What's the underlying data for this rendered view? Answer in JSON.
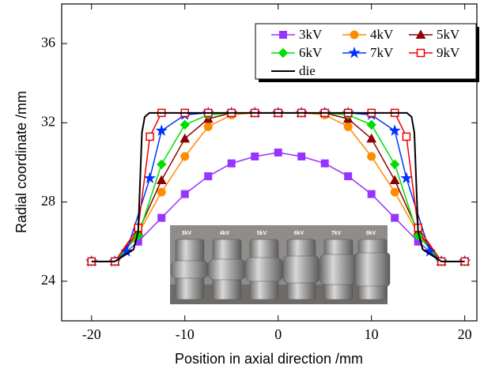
{
  "chart_data": {
    "type": "line",
    "x_label": "Position in axial direction /mm",
    "y_label": "Radial coordinate /mm",
    "xlim": [
      -23.2,
      21.3
    ],
    "ylim": [
      22,
      38
    ],
    "xticks": [
      -20,
      -10,
      0,
      10,
      20
    ],
    "yticks": [
      24,
      28,
      32,
      36
    ],
    "legend": "upper right",
    "inset_labels": [
      "3kV",
      "4kV",
      "5kV",
      "6kV",
      "7kV",
      "9kV"
    ],
    "series": [
      {
        "name": "3kV",
        "color": "#9933ff",
        "marker": "square",
        "x": [
          -20,
          -17.5,
          -15,
          -12.5,
          -10,
          -7.5,
          -5,
          -2.5,
          0,
          2.5,
          5,
          7.5,
          10,
          12.5,
          15,
          17.5,
          20
        ],
        "values": [
          25.0,
          25.0,
          26.0,
          27.2,
          28.4,
          29.3,
          29.95,
          30.3,
          30.5,
          30.3,
          29.95,
          29.3,
          28.4,
          27.2,
          26.0,
          25.0,
          25.0
        ]
      },
      {
        "name": "4kV",
        "color": "#ff8c00",
        "marker": "circle",
        "x": [
          -20,
          -17.5,
          -15,
          -12.5,
          -10,
          -7.5,
          -5,
          -2.5,
          0,
          2.5,
          5,
          7.5,
          10,
          12.5,
          15,
          17.5,
          20
        ],
        "values": [
          25.0,
          25.0,
          26.4,
          28.5,
          30.3,
          31.8,
          32.4,
          32.5,
          32.5,
          32.5,
          32.4,
          31.8,
          30.3,
          28.5,
          26.4,
          25.0,
          25.0
        ]
      },
      {
        "name": "5kV",
        "color": "#8b0000",
        "marker": "triangle",
        "x": [
          -20,
          -17.5,
          -15,
          -12.5,
          -10,
          -7.5,
          -5,
          -2.5,
          0,
          2.5,
          5,
          7.5,
          10,
          12.5,
          15,
          17.5,
          20
        ],
        "values": [
          25.0,
          25.0,
          26.5,
          29.1,
          31.2,
          32.2,
          32.5,
          32.5,
          32.5,
          32.5,
          32.5,
          32.2,
          31.2,
          29.1,
          26.5,
          25.0,
          25.0
        ]
      },
      {
        "name": "6kV",
        "color": "#00dd00",
        "marker": "diamond",
        "x": [
          -20,
          -17.5,
          -15,
          -12.5,
          -10,
          -7.5,
          -5,
          -2.5,
          0,
          2.5,
          5,
          7.5,
          10,
          12.5,
          15,
          17.5,
          20
        ],
        "values": [
          25.0,
          25.0,
          26.3,
          29.9,
          31.9,
          32.4,
          32.5,
          32.5,
          32.5,
          32.5,
          32.5,
          32.4,
          31.9,
          29.9,
          26.3,
          25.0,
          25.0
        ]
      },
      {
        "name": "7kV",
        "color": "#0033ff",
        "marker": "star",
        "x": [
          -20,
          -17.5,
          -16.25,
          -13.75,
          -12.5,
          -10,
          -7.5,
          -5,
          -2.5,
          0,
          2.5,
          5,
          7.5,
          10,
          12.5,
          13.75,
          16.25,
          17.5,
          20
        ],
        "values": [
          25.0,
          25.0,
          25.5,
          29.2,
          31.6,
          32.4,
          32.5,
          32.5,
          32.5,
          32.5,
          32.5,
          32.5,
          32.5,
          32.4,
          31.6,
          29.2,
          25.5,
          25.0,
          25.0
        ]
      },
      {
        "name": "9kV",
        "color": "#ee0000",
        "marker": "open-square",
        "x": [
          -20,
          -17.5,
          -15,
          -13.75,
          -12.5,
          -10,
          -7.5,
          -5,
          -2.5,
          0,
          2.5,
          5,
          7.5,
          10,
          12.5,
          13.75,
          15,
          17.5,
          20
        ],
        "values": [
          25.0,
          25.0,
          26.7,
          31.3,
          32.5,
          32.5,
          32.5,
          32.5,
          32.5,
          32.5,
          32.5,
          32.5,
          32.5,
          32.5,
          32.5,
          31.3,
          26.7,
          25.0,
          25.0
        ]
      },
      {
        "name": "die",
        "color": "#000000",
        "x": [
          -20,
          -17.5,
          -15.5,
          -15,
          -14.6,
          -14.3,
          -13.8,
          13.8,
          14.3,
          14.6,
          15,
          15.5,
          17.5,
          20
        ],
        "values": [
          25.0,
          25.0,
          25.6,
          26.5,
          31.5,
          32.3,
          32.5,
          32.5,
          32.3,
          31.5,
          26.5,
          25.6,
          25.0,
          25.0
        ]
      }
    ]
  }
}
